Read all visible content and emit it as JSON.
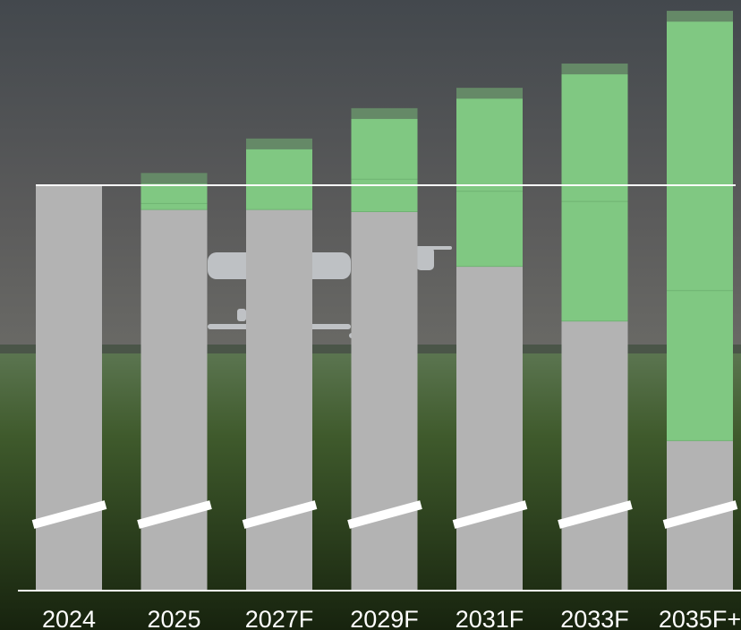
{
  "chart_data": {
    "type": "bar",
    "stacked": true,
    "title": "",
    "xlabel": "",
    "ylabel": "",
    "axis_break": true,
    "reference_line": 100,
    "ylim": [
      0,
      143
    ],
    "categories": [
      "2024",
      "2025",
      "2027F",
      "2029F",
      "2031F",
      "2033F",
      "2035F+"
    ],
    "series": [
      {
        "values": [
          100,
          94,
          94,
          93.5,
          80,
          66.5,
          37
        ]
      },
      {
        "values": [
          0,
          1.5,
          6,
          8,
          18.5,
          29.5,
          37
        ]
      },
      {
        "values": [
          0,
          7.5,
          11.5,
          17.5,
          25.5,
          34,
          69
        ]
      }
    ],
    "colors": {
      "base": "#b3b3b3",
      "growth": "#80c882",
      "segment_divider": "#6fb372",
      "reference_line": "#ffffff",
      "axis": "#ffffff",
      "break_mark": "#ffffff",
      "sky_top": "#42464b",
      "sky_mid": "#5a5a5a",
      "field_top": "#56704a",
      "field_bottom": "#18240f"
    },
    "background": {
      "depicts": "drone flying over a green crop field under a cloudy sky"
    }
  }
}
